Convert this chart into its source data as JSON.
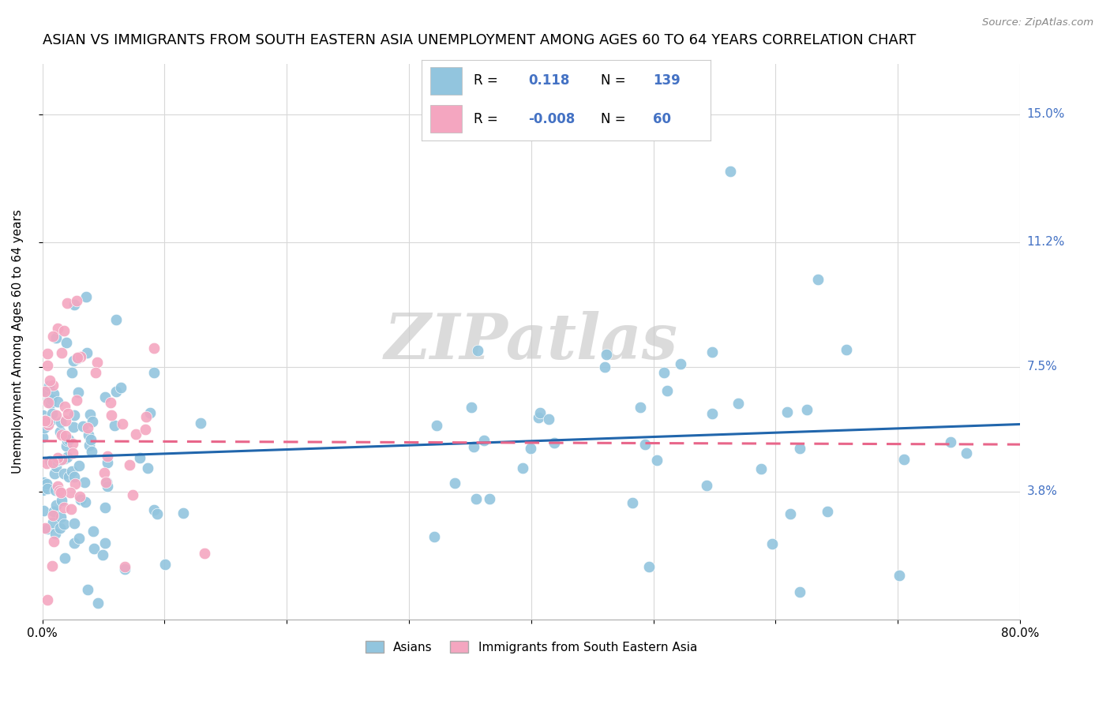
{
  "title": "ASIAN VS IMMIGRANTS FROM SOUTH EASTERN ASIA UNEMPLOYMENT AMONG AGES 60 TO 64 YEARS CORRELATION CHART",
  "source": "Source: ZipAtlas.com",
  "ylabel": "Unemployment Among Ages 60 to 64 years",
  "xmin": 0.0,
  "xmax": 0.8,
  "ymin": 0.0,
  "ymax": 0.165,
  "yticks": [
    0.038,
    0.075,
    0.112,
    0.15
  ],
  "ytick_labels": [
    "3.8%",
    "7.5%",
    "11.2%",
    "15.0%"
  ],
  "xticks": [
    0.0,
    0.1,
    0.2,
    0.3,
    0.4,
    0.5,
    0.6,
    0.7,
    0.8
  ],
  "xtick_labels": [
    "0.0%",
    "",
    "",
    "",
    "",
    "",
    "",
    "",
    "80.0%"
  ],
  "asian_color": "#92c5de",
  "immigrant_color": "#f4a6c0",
  "asian_line_color": "#2166ac",
  "immigrant_line_color": "#e8668a",
  "tick_label_color": "#4472c4",
  "watermark": "ZIPatlas",
  "title_fontsize": 13,
  "axis_label_fontsize": 11,
  "tick_fontsize": 11,
  "asian_R": 0.118,
  "asian_N": 139,
  "immigrant_R": -0.008,
  "immigrant_N": 60,
  "asian_line_x0": 0.0,
  "asian_line_x1": 0.8,
  "asian_line_y0": 0.048,
  "asian_line_y1": 0.058,
  "immigrant_line_x0": 0.0,
  "immigrant_line_x1": 0.8,
  "immigrant_line_y0": 0.053,
  "immigrant_line_y1": 0.052
}
